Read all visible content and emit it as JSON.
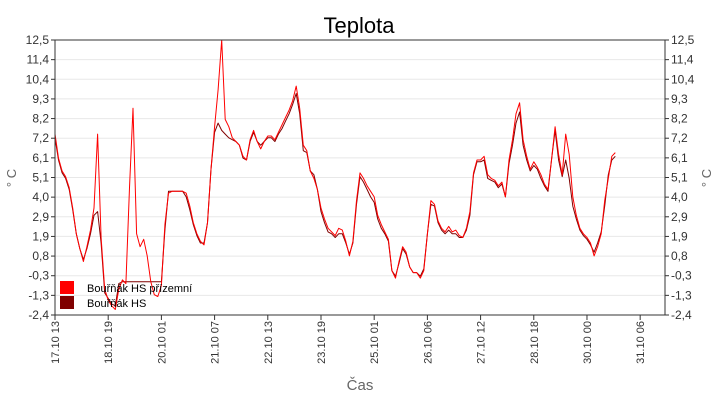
{
  "chart_data": {
    "type": "line",
    "title": "Teplota",
    "xlabel": "Čas",
    "ylabel": "° C",
    "ylim": [
      -2.4,
      12.5
    ],
    "yticks": [
      "12,5",
      "11,4",
      "10,4",
      "9,3",
      "8,2",
      "7,2",
      "6,1",
      "5,1",
      "4,0",
      "2,9",
      "1,9",
      "0,8",
      "-0,3",
      "-1,3",
      "-2,4"
    ],
    "xlim": [
      0,
      344
    ],
    "xticks": [
      {
        "label": "17.10 13",
        "t": 0
      },
      {
        "label": "18.10 19",
        "t": 30
      },
      {
        "label": "20.10 01",
        "t": 60
      },
      {
        "label": "21.10 07",
        "t": 90
      },
      {
        "label": "22.10 13",
        "t": 120
      },
      {
        "label": "23.10 19",
        "t": 150
      },
      {
        "label": "25.10 01",
        "t": 180
      },
      {
        "label": "26.10 06",
        "t": 210
      },
      {
        "label": "27.10 12",
        "t": 240
      },
      {
        "label": "28.10 18",
        "t": 270
      },
      {
        "label": "30.10 00",
        "t": 300
      },
      {
        "label": "31.10 06",
        "t": 330
      }
    ],
    "grid": true,
    "legend_position": "bottom-left",
    "series": [
      {
        "name": "Bouřňák HS přízemní",
        "color": "#ff0000",
        "points": [
          [
            0,
            7.4
          ],
          [
            2,
            6.1
          ],
          [
            4,
            5.4
          ],
          [
            6,
            5.1
          ],
          [
            8,
            4.5
          ],
          [
            10,
            3.4
          ],
          [
            12,
            2.0
          ],
          [
            14,
            1.2
          ],
          [
            16,
            0.5
          ],
          [
            18,
            1.3
          ],
          [
            20,
            2.2
          ],
          [
            22,
            3.4
          ],
          [
            24,
            7.4
          ],
          [
            26,
            1.8
          ],
          [
            28,
            -1.0
          ],
          [
            30,
            -1.6
          ],
          [
            32,
            -1.9
          ],
          [
            34,
            -2.1
          ],
          [
            36,
            -1.0
          ],
          [
            38,
            -0.5
          ],
          [
            40,
            -0.7
          ],
          [
            42,
            4.5
          ],
          [
            44,
            8.8
          ],
          [
            46,
            2.0
          ],
          [
            48,
            1.3
          ],
          [
            50,
            1.7
          ],
          [
            52,
            0.8
          ],
          [
            54,
            -0.6
          ],
          [
            56,
            -1.3
          ],
          [
            58,
            -1.4
          ],
          [
            60,
            -0.8
          ],
          [
            62,
            2.5
          ],
          [
            64,
            4.2
          ],
          [
            66,
            4.3
          ],
          [
            68,
            4.3
          ],
          [
            70,
            4.3
          ],
          [
            72,
            4.3
          ],
          [
            74,
            4.2
          ],
          [
            76,
            3.5
          ],
          [
            78,
            2.6
          ],
          [
            80,
            2.0
          ],
          [
            82,
            1.6
          ],
          [
            84,
            1.4
          ],
          [
            86,
            2.6
          ],
          [
            88,
            5.5
          ],
          [
            90,
            7.8
          ],
          [
            92,
            9.8
          ],
          [
            94,
            12.5
          ],
          [
            96,
            8.2
          ],
          [
            98,
            7.8
          ],
          [
            100,
            7.2
          ],
          [
            102,
            7.0
          ],
          [
            104,
            6.8
          ],
          [
            106,
            6.2
          ],
          [
            108,
            6.0
          ],
          [
            110,
            7.1
          ],
          [
            112,
            7.6
          ],
          [
            114,
            7.0
          ],
          [
            116,
            6.6
          ],
          [
            118,
            7.0
          ],
          [
            120,
            7.3
          ],
          [
            122,
            7.3
          ],
          [
            124,
            7.1
          ],
          [
            126,
            7.5
          ],
          [
            128,
            7.9
          ],
          [
            130,
            8.3
          ],
          [
            132,
            8.7
          ],
          [
            134,
            9.2
          ],
          [
            136,
            10.0
          ],
          [
            138,
            8.8
          ],
          [
            140,
            6.8
          ],
          [
            142,
            6.5
          ],
          [
            144,
            5.4
          ],
          [
            146,
            5.0
          ],
          [
            148,
            4.4
          ],
          [
            150,
            3.4
          ],
          [
            152,
            2.8
          ],
          [
            154,
            2.3
          ],
          [
            156,
            2.1
          ],
          [
            158,
            1.9
          ],
          [
            160,
            2.3
          ],
          [
            162,
            2.2
          ],
          [
            164,
            1.6
          ],
          [
            166,
            0.8
          ],
          [
            168,
            1.6
          ],
          [
            170,
            3.8
          ],
          [
            172,
            5.3
          ],
          [
            174,
            5.0
          ],
          [
            176,
            4.6
          ],
          [
            178,
            4.3
          ],
          [
            180,
            4.0
          ],
          [
            182,
            3.0
          ],
          [
            184,
            2.5
          ],
          [
            186,
            2.1
          ],
          [
            188,
            1.7
          ],
          [
            190,
            0.0
          ],
          [
            192,
            -0.4
          ],
          [
            194,
            0.5
          ],
          [
            196,
            1.3
          ],
          [
            198,
            1.0
          ],
          [
            200,
            0.2
          ],
          [
            202,
            -0.1
          ],
          [
            204,
            -0.1
          ],
          [
            206,
            -0.4
          ],
          [
            208,
            0.0
          ],
          [
            210,
            2.0
          ],
          [
            212,
            3.8
          ],
          [
            214,
            3.6
          ],
          [
            216,
            2.7
          ],
          [
            218,
            2.3
          ],
          [
            220,
            2.1
          ],
          [
            222,
            2.4
          ],
          [
            224,
            2.1
          ],
          [
            226,
            2.2
          ],
          [
            228,
            1.9
          ],
          [
            230,
            1.8
          ],
          [
            232,
            2.3
          ],
          [
            234,
            3.2
          ],
          [
            236,
            5.3
          ],
          [
            238,
            6.0
          ],
          [
            240,
            6.0
          ],
          [
            242,
            6.2
          ],
          [
            244,
            5.2
          ],
          [
            246,
            5.0
          ],
          [
            248,
            4.9
          ],
          [
            250,
            4.6
          ],
          [
            252,
            4.8
          ],
          [
            254,
            4.0
          ],
          [
            256,
            6.0
          ],
          [
            258,
            7.1
          ],
          [
            260,
            8.5
          ],
          [
            262,
            9.1
          ],
          [
            264,
            7.1
          ],
          [
            266,
            6.2
          ],
          [
            268,
            5.5
          ],
          [
            270,
            5.9
          ],
          [
            272,
            5.6
          ],
          [
            274,
            5.2
          ],
          [
            276,
            4.7
          ],
          [
            278,
            4.4
          ],
          [
            280,
            6.0
          ],
          [
            282,
            7.8
          ],
          [
            284,
            6.3
          ],
          [
            286,
            5.2
          ],
          [
            288,
            7.4
          ],
          [
            290,
            6.3
          ],
          [
            292,
            4.0
          ],
          [
            294,
            3.0
          ],
          [
            296,
            2.3
          ],
          [
            298,
            2.0
          ],
          [
            300,
            1.8
          ],
          [
            302,
            1.5
          ],
          [
            304,
            0.8
          ],
          [
            306,
            1.3
          ],
          [
            308,
            2.0
          ],
          [
            310,
            3.8
          ],
          [
            312,
            5.0
          ],
          [
            314,
            6.2
          ],
          [
            316,
            6.4
          ]
        ]
      },
      {
        "name": "Bouřňák HS",
        "color": "#800000",
        "points": [
          [
            0,
            7.2
          ],
          [
            2,
            6.0
          ],
          [
            4,
            5.3
          ],
          [
            6,
            5.0
          ],
          [
            8,
            4.4
          ],
          [
            10,
            3.3
          ],
          [
            12,
            2.0
          ],
          [
            14,
            1.2
          ],
          [
            16,
            0.6
          ],
          [
            18,
            1.2
          ],
          [
            20,
            2.0
          ],
          [
            22,
            3.0
          ],
          [
            24,
            3.2
          ],
          [
            26,
            1.5
          ],
          [
            28,
            -1.2
          ],
          [
            30,
            -1.5
          ],
          [
            32,
            -1.8
          ],
          [
            34,
            -1.9
          ],
          [
            36,
            -0.7
          ],
          [
            38,
            -0.6
          ],
          [
            40,
            -0.6
          ],
          [
            42,
            -0.6
          ],
          [
            44,
            -0.6
          ],
          [
            46,
            -0.6
          ],
          [
            48,
            -0.6
          ],
          [
            50,
            -0.6
          ],
          [
            52,
            -0.6
          ],
          [
            54,
            -0.6
          ],
          [
            56,
            -0.6
          ],
          [
            58,
            -0.6
          ],
          [
            60,
            -0.6
          ],
          [
            62,
            2.2
          ],
          [
            64,
            4.3
          ],
          [
            66,
            4.3
          ],
          [
            68,
            4.3
          ],
          [
            70,
            4.3
          ],
          [
            72,
            4.3
          ],
          [
            74,
            4.0
          ],
          [
            76,
            3.3
          ],
          [
            78,
            2.5
          ],
          [
            80,
            1.9
          ],
          [
            82,
            1.5
          ],
          [
            84,
            1.5
          ],
          [
            86,
            2.6
          ],
          [
            88,
            5.5
          ],
          [
            90,
            7.5
          ],
          [
            92,
            8.0
          ],
          [
            94,
            7.6
          ],
          [
            96,
            7.4
          ],
          [
            98,
            7.2
          ],
          [
            100,
            7.1
          ],
          [
            102,
            7.0
          ],
          [
            104,
            6.8
          ],
          [
            106,
            6.1
          ],
          [
            108,
            6.0
          ],
          [
            110,
            7.0
          ],
          [
            112,
            7.5
          ],
          [
            114,
            7.0
          ],
          [
            116,
            6.8
          ],
          [
            118,
            7.0
          ],
          [
            120,
            7.2
          ],
          [
            122,
            7.2
          ],
          [
            124,
            7.0
          ],
          [
            126,
            7.4
          ],
          [
            128,
            7.7
          ],
          [
            130,
            8.1
          ],
          [
            132,
            8.5
          ],
          [
            134,
            9.0
          ],
          [
            136,
            9.6
          ],
          [
            138,
            8.5
          ],
          [
            140,
            6.5
          ],
          [
            142,
            6.4
          ],
          [
            144,
            5.4
          ],
          [
            146,
            5.2
          ],
          [
            148,
            4.4
          ],
          [
            150,
            3.2
          ],
          [
            152,
            2.6
          ],
          [
            154,
            2.1
          ],
          [
            156,
            2.0
          ],
          [
            158,
            1.8
          ],
          [
            160,
            2.0
          ],
          [
            162,
            2.0
          ],
          [
            164,
            1.5
          ],
          [
            166,
            0.9
          ],
          [
            168,
            1.5
          ],
          [
            170,
            3.6
          ],
          [
            172,
            5.1
          ],
          [
            174,
            4.8
          ],
          [
            176,
            4.4
          ],
          [
            178,
            4.0
          ],
          [
            180,
            3.7
          ],
          [
            182,
            2.8
          ],
          [
            184,
            2.3
          ],
          [
            186,
            2.0
          ],
          [
            188,
            1.6
          ],
          [
            190,
            0.0
          ],
          [
            192,
            -0.3
          ],
          [
            194,
            0.4
          ],
          [
            196,
            1.2
          ],
          [
            198,
            0.9
          ],
          [
            200,
            0.2
          ],
          [
            202,
            -0.1
          ],
          [
            204,
            -0.1
          ],
          [
            206,
            -0.3
          ],
          [
            208,
            0.1
          ],
          [
            210,
            2.0
          ],
          [
            212,
            3.6
          ],
          [
            214,
            3.5
          ],
          [
            216,
            2.6
          ],
          [
            218,
            2.2
          ],
          [
            220,
            2.0
          ],
          [
            222,
            2.2
          ],
          [
            224,
            2.0
          ],
          [
            226,
            2.0
          ],
          [
            228,
            1.8
          ],
          [
            230,
            1.8
          ],
          [
            232,
            2.2
          ],
          [
            234,
            3.0
          ],
          [
            236,
            5.2
          ],
          [
            238,
            5.9
          ],
          [
            240,
            5.9
          ],
          [
            242,
            6.0
          ],
          [
            244,
            5.0
          ],
          [
            246,
            4.9
          ],
          [
            248,
            4.8
          ],
          [
            250,
            4.5
          ],
          [
            252,
            4.7
          ],
          [
            254,
            4.0
          ],
          [
            256,
            5.8
          ],
          [
            258,
            6.8
          ],
          [
            260,
            8.0
          ],
          [
            262,
            8.6
          ],
          [
            264,
            6.8
          ],
          [
            266,
            6.0
          ],
          [
            268,
            5.4
          ],
          [
            270,
            5.7
          ],
          [
            272,
            5.5
          ],
          [
            274,
            5.0
          ],
          [
            276,
            4.6
          ],
          [
            278,
            4.3
          ],
          [
            280,
            6.0
          ],
          [
            282,
            7.6
          ],
          [
            284,
            6.0
          ],
          [
            286,
            5.1
          ],
          [
            288,
            6.0
          ],
          [
            290,
            5.0
          ],
          [
            292,
            3.5
          ],
          [
            294,
            2.8
          ],
          [
            296,
            2.2
          ],
          [
            298,
            1.9
          ],
          [
            300,
            1.7
          ],
          [
            302,
            1.4
          ],
          [
            304,
            1.0
          ],
          [
            306,
            1.5
          ],
          [
            308,
            2.1
          ],
          [
            310,
            3.5
          ],
          [
            312,
            5.2
          ],
          [
            314,
            6.0
          ],
          [
            316,
            6.2
          ]
        ]
      }
    ]
  }
}
